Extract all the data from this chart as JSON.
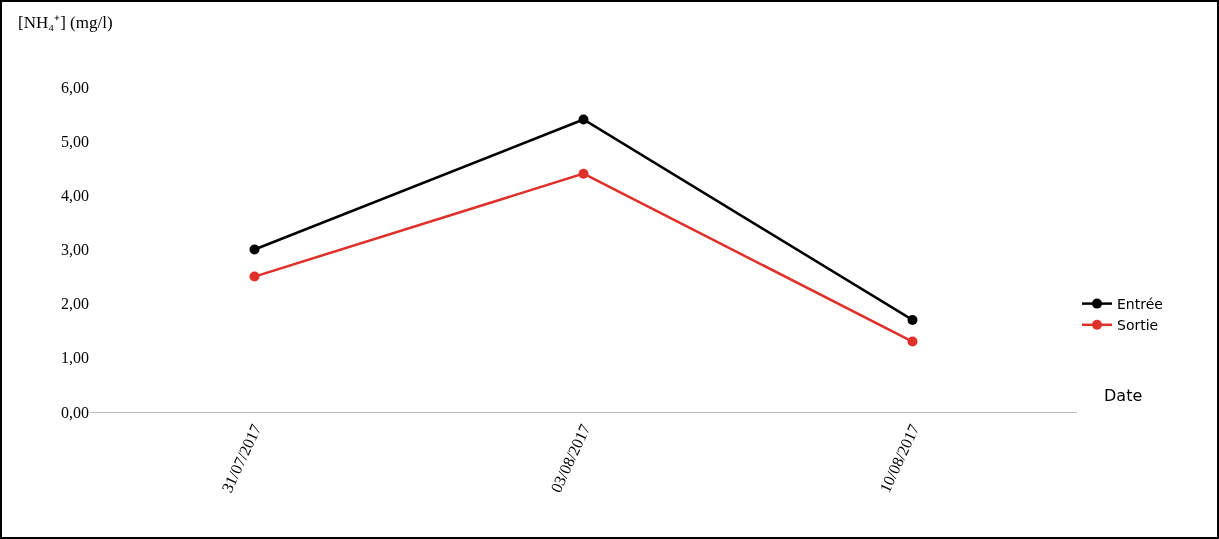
{
  "chart_data": {
    "type": "line",
    "ylabel": "[NH₄⁺] (mg/l)",
    "xlabel": "Date",
    "categories": [
      "31/07/2017",
      "03/08/2017",
      "10/08/2017"
    ],
    "series": [
      {
        "name": "Entrée",
        "color": "#000000",
        "values": [
          3.0,
          5.4,
          1.7
        ]
      },
      {
        "name": "Sortie",
        "color": "#e0302a",
        "values": [
          2.5,
          4.4,
          1.3
        ]
      }
    ],
    "ylim": [
      0,
      6
    ],
    "yticks": [
      {
        "value": 0,
        "label": "0,00"
      },
      {
        "value": 1,
        "label": "1,00"
      },
      {
        "value": 2,
        "label": "2,00"
      },
      {
        "value": 3,
        "label": "3,00"
      },
      {
        "value": 4,
        "label": "4,00"
      },
      {
        "value": 5,
        "label": "5,00"
      },
      {
        "value": 6,
        "label": "6,00"
      }
    ],
    "grid": false,
    "legend": "right",
    "marker": "circle",
    "line_style": "solid"
  }
}
